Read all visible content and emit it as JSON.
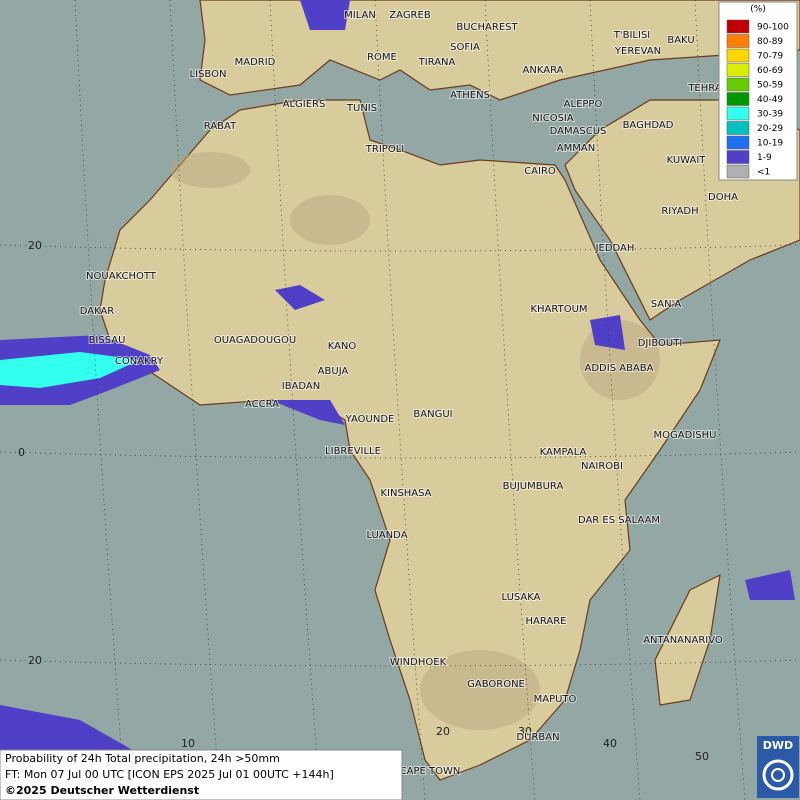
{
  "map": {
    "cities": [
      "MILAN",
      "ZAGREB",
      "BUCHAREST",
      "MADRID",
      "LISBON",
      "ROME",
      "SOFIA",
      "TIRANA",
      "ANKARA",
      "T'BILISI",
      "YEREVAN",
      "BAKU",
      "TEHRA",
      "ALGIERS",
      "TUNIS",
      "ATHENS",
      "NICOSIA",
      "ALEPPO",
      "RABAT",
      "BAGHDAD",
      "DAMASCUS",
      "AMMAN",
      "TRIPOLI",
      "KUWAIT",
      "CAIRO",
      "DOHA",
      "RIYADH",
      "JEDDAH",
      "NOUAKCHOTT",
      "SAN'A",
      "DAKAR",
      "KHARTOUM",
      "BISSAU",
      "DJIBOUTI",
      "OUAGADOUGOU",
      "KANO",
      "CONAKRY",
      "ABUJA",
      "ADDIS ABABA",
      "IBADAN",
      "ACCRA",
      "YAOUNDE",
      "BANGUI",
      "MOGADISHU",
      "LIBREVILLE",
      "KAMPALA",
      "NAIROBI",
      "BUJUMBURA",
      "KINSHASA",
      "DAR ES SALAAM",
      "LUANDA",
      "LUSAKA",
      "HARARE",
      "ANTANANARIVO",
      "WINDHOEK",
      "GABORONE",
      "MAPUTO",
      "DURBAN",
      "CAPE TOWN"
    ],
    "lat_labels": [
      "20",
      "0",
      "20"
    ],
    "lon_labels": [
      "10",
      "20",
      "30",
      "40",
      "50"
    ]
  },
  "legend": {
    "title": "(%)",
    "items": [
      {
        "label": "90-100",
        "color": "#c00000"
      },
      {
        "label": "80-89",
        "color": "#ff8000"
      },
      {
        "label": "70-79",
        "color": "#ffd700"
      },
      {
        "label": "60-69",
        "color": "#d8f000"
      },
      {
        "label": "50-59",
        "color": "#66cc00"
      },
      {
        "label": "40-49",
        "color": "#009900"
      },
      {
        "label": "30-39",
        "color": "#33ffee"
      },
      {
        "label": "20-29",
        "color": "#00c0c0"
      },
      {
        "label": "10-19",
        "color": "#2070f0"
      },
      {
        "label": "1-9",
        "color": "#5040c8"
      },
      {
        "label": "<1",
        "color": "#b0b0b0"
      }
    ]
  },
  "caption": {
    "line1": "Probability of 24h Total precipitation, 24h >50mm",
    "line2": "FT: Mon 07 Jul 00 UTC [ICON EPS 2025 Jul 01 00UTC +144h]",
    "line3": "©2025 Deutscher Wetterdienst"
  },
  "logo": "DWD"
}
